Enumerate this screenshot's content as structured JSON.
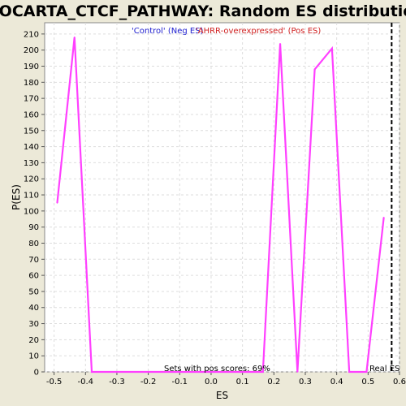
{
  "chart_data": {
    "type": "line",
    "title": "BIOCARTA_CTCF_PATHWAY: Random ES distribution",
    "xlabel": "ES",
    "ylabel": "P(ES)",
    "xlim": [
      -0.53,
      0.6
    ],
    "ylim": [
      0,
      217
    ],
    "xticks": [
      "-0.5",
      "-0.4",
      "-0.3",
      "-0.2",
      "-0.1",
      "0.0",
      "0.1",
      "0.2",
      "0.3",
      "0.4",
      "0.5",
      "0.6"
    ],
    "yticks": [
      "0",
      "10",
      "20",
      "30",
      "40",
      "50",
      "60",
      "70",
      "80",
      "90",
      "100",
      "110",
      "120",
      "130",
      "140",
      "150",
      "160",
      "170",
      "180",
      "190",
      "200",
      "210"
    ],
    "grid": true,
    "series": [
      {
        "color": "#FF40FF",
        "x": [
          -0.49,
          -0.435,
          -0.38,
          -0.34,
          0.165,
          0.22,
          0.275,
          0.33,
          0.385,
          0.44,
          0.495,
          0.55
        ],
        "y": [
          105,
          208,
          0,
          0,
          0,
          204,
          0,
          188,
          201,
          0,
          0,
          96
        ]
      }
    ],
    "real_es": 0.575,
    "legend": {
      "neg": {
        "label": "'Control' (Neg ES)",
        "color": "#2020D0"
      },
      "pos": {
        "label": "'AHRR-overexpressed' (Pos ES)",
        "color": "#D02020"
      }
    },
    "annotations": {
      "pos_scores": "Sets with pos scores: 69%",
      "real_es": "Real ES"
    }
  }
}
